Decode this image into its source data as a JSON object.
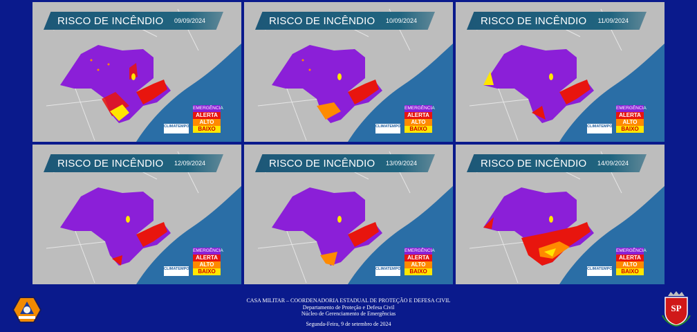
{
  "panels": [
    {
      "title": "RISCO DE INCÊNDIO",
      "date": "09/09/2024"
    },
    {
      "title": "RISCO DE INCÊNDIO",
      "date": "10/09/2024"
    },
    {
      "title": "RISCO DE INCÊNDIO",
      "date": "11/09/2024"
    },
    {
      "title": "RISCO DE INCÊNDIO",
      "date": "12/09/2024"
    },
    {
      "title": "RISCO DE INCÊNDIO",
      "date": "13/09/2024"
    },
    {
      "title": "RISCO DE INCÊNDIO",
      "date": "14/09/2024"
    }
  ],
  "legend": {
    "emergencia": "EMERGÊNCIA",
    "alerta": "ALERTA",
    "alto": "ALTO",
    "baixo": "BAIXO"
  },
  "legend_colors": {
    "emergencia": "#8a1fd6",
    "alerta": "#e8150e",
    "alto": "#ff8a00",
    "baixo": "#ffe600"
  },
  "climatempo": {
    "name": "CLIMATEMPO"
  },
  "footer": {
    "line1": "CASA MILITAR – COORDENADORIA ESTADUAL DE PROTEÇÃO E DEFESA CIVIL",
    "line2": "Departamento de Proteção e Defesa Civil",
    "line3": "Núcleo de Gerenciamento de Emergências",
    "line4": "Segunda-Feira, 9 de setembro de 2024"
  },
  "icons": {
    "left_logo": "defesa-civil-emblem-icon",
    "right_logo": "sao-paulo-coat-of-arms-icon"
  }
}
